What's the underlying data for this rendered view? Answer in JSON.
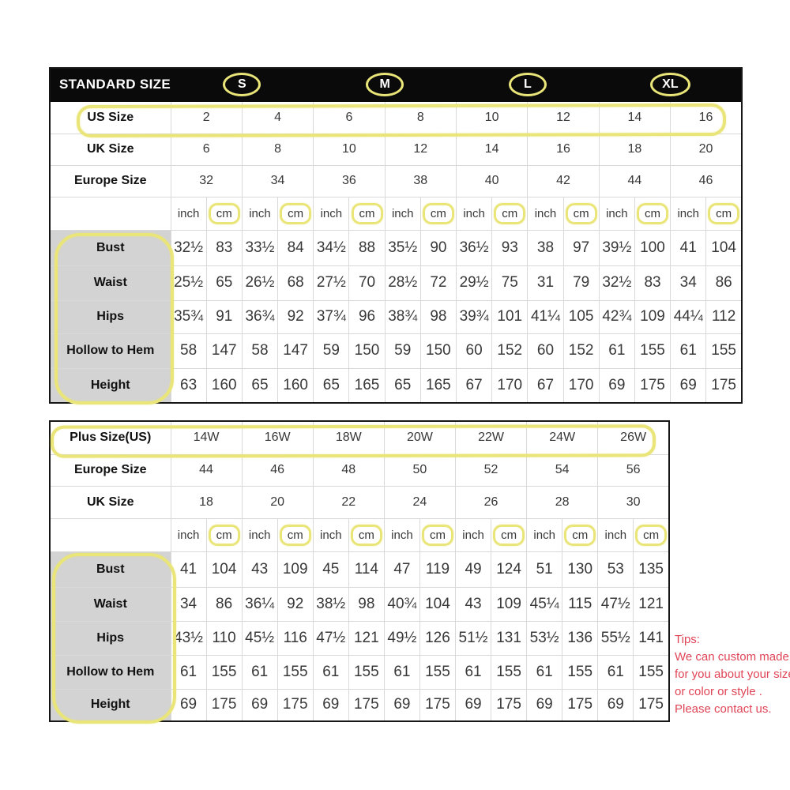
{
  "colors": {
    "annotation_yellow": "#e9e578",
    "tips_red": "#e04557",
    "header_black": "#0a0a0a",
    "label_gray": "#d3d3d3"
  },
  "units": {
    "inch": "inch",
    "cm": "cm"
  },
  "standard_table": {
    "header": {
      "title": "STANDARD SIZE",
      "groups": [
        "S",
        "M",
        "L",
        "XL"
      ]
    },
    "size_rows": [
      {
        "label": "US Size",
        "highlighted": true,
        "values": [
          "2",
          "4",
          "6",
          "8",
          "10",
          "12",
          "14",
          "16"
        ]
      },
      {
        "label": "UK Size",
        "highlighted": false,
        "values": [
          "6",
          "8",
          "10",
          "12",
          "14",
          "16",
          "18",
          "20"
        ]
      },
      {
        "label": "Europe Size",
        "highlighted": false,
        "values": [
          "32",
          "34",
          "36",
          "38",
          "40",
          "42",
          "44",
          "46"
        ]
      }
    ],
    "measure_rows": [
      {
        "label": "Bust",
        "values": [
          "32½",
          "83",
          "33½",
          "84",
          "34½",
          "88",
          "35½",
          "90",
          "36½",
          "93",
          "38",
          "97",
          "39½",
          "100",
          "41",
          "104"
        ]
      },
      {
        "label": "Waist",
        "values": [
          "25½",
          "65",
          "26½",
          "68",
          "27½",
          "70",
          "28½",
          "72",
          "29½",
          "75",
          "31",
          "79",
          "32½",
          "83",
          "34",
          "86"
        ]
      },
      {
        "label": "Hips",
        "values": [
          "35¾",
          "91",
          "36¾",
          "92",
          "37¾",
          "96",
          "38¾",
          "98",
          "39¾",
          "101",
          "41¼",
          "105",
          "42¾",
          "109",
          "44¼",
          "112"
        ]
      },
      {
        "label": "Hollow to Hem",
        "values": [
          "58",
          "147",
          "58",
          "147",
          "59",
          "150",
          "59",
          "150",
          "60",
          "152",
          "60",
          "152",
          "61",
          "155",
          "61",
          "155"
        ]
      },
      {
        "label": "Height",
        "values": [
          "63",
          "160",
          "65",
          "160",
          "65",
          "165",
          "65",
          "165",
          "67",
          "170",
          "67",
          "170",
          "69",
          "175",
          "69",
          "175"
        ]
      }
    ]
  },
  "plus_table": {
    "size_rows": [
      {
        "label": "Plus Size(US)",
        "highlighted": true,
        "values": [
          "14W",
          "16W",
          "18W",
          "20W",
          "22W",
          "24W",
          "26W"
        ]
      },
      {
        "label": "Europe Size",
        "highlighted": false,
        "values": [
          "44",
          "46",
          "48",
          "50",
          "52",
          "54",
          "56"
        ]
      },
      {
        "label": "UK Size",
        "highlighted": false,
        "values": [
          "18",
          "20",
          "22",
          "24",
          "26",
          "28",
          "30"
        ]
      }
    ],
    "measure_rows": [
      {
        "label": "Bust",
        "values": [
          "41",
          "104",
          "43",
          "109",
          "45",
          "114",
          "47",
          "119",
          "49",
          "124",
          "51",
          "130",
          "53",
          "135"
        ]
      },
      {
        "label": "Waist",
        "values": [
          "34",
          "86",
          "36¼",
          "92",
          "38½",
          "98",
          "40¾",
          "104",
          "43",
          "109",
          "45¼",
          "115",
          "47½",
          "121"
        ]
      },
      {
        "label": "Hips",
        "values": [
          "43½",
          "110",
          "45½",
          "116",
          "47½",
          "121",
          "49½",
          "126",
          "51½",
          "131",
          "53½",
          "136",
          "55½",
          "141"
        ]
      },
      {
        "label": "Hollow to Hem",
        "values": [
          "61",
          "155",
          "61",
          "155",
          "61",
          "155",
          "61",
          "155",
          "61",
          "155",
          "61",
          "155",
          "61",
          "155"
        ]
      },
      {
        "label": "Height",
        "values": [
          "69",
          "175",
          "69",
          "175",
          "69",
          "175",
          "69",
          "175",
          "69",
          "175",
          "69",
          "175",
          "69",
          "175"
        ]
      }
    ]
  },
  "tips": {
    "title": "Tips:",
    "lines": [
      "We can custom made",
      "for you about your size",
      "or color or style .",
      "Please contact us."
    ]
  }
}
